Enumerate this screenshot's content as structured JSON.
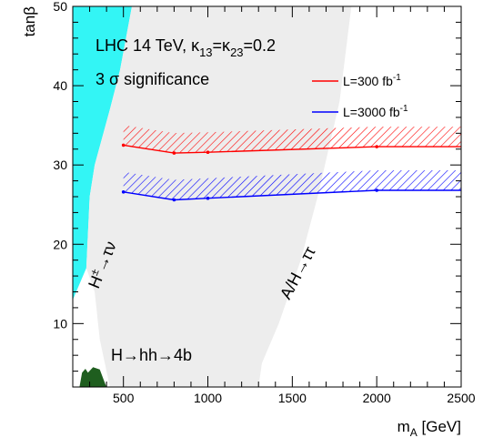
{
  "chart_data": {
    "type": "line",
    "title": "LHC 14 TeV, κ13=κ23=0.2",
    "subtitle": "3 σ significance",
    "xlabel": "m_A [GeV]",
    "ylabel": "tanβ",
    "xlim": [
      200,
      2500
    ],
    "ylim": [
      2,
      50
    ],
    "x_ticks": [
      500,
      1000,
      1500,
      2000,
      2500
    ],
    "y_ticks": [
      10,
      20,
      30,
      40,
      50
    ],
    "grid": false,
    "legend_position": "top-right",
    "series": [
      {
        "name": "L=300 fb",
        "name_superscript": "-1",
        "color": "#ff0000",
        "hatch_side": "above",
        "x": [
          500,
          800,
          1000,
          2000,
          2500
        ],
        "y": [
          32.5,
          31.5,
          31.6,
          32.3,
          32.3
        ]
      },
      {
        "name": "L=3000 fb",
        "name_superscript": "-1",
        "color": "#0000ff",
        "hatch_side": "above",
        "x": [
          500,
          800,
          1000,
          2000,
          2500
        ],
        "y": [
          26.6,
          25.6,
          25.8,
          26.8,
          26.8
        ]
      }
    ],
    "regions": [
      {
        "label": "H±→τν",
        "color": "#33f5f5",
        "boundary": [
          [
            200,
            50
          ],
          [
            550,
            50
          ],
          [
            480,
            42
          ],
          [
            420,
            37
          ],
          [
            330,
            30
          ],
          [
            300,
            26
          ],
          [
            280,
            17
          ],
          [
            200,
            13
          ]
        ]
      },
      {
        "label": "A/H→ττ",
        "color": "#ededed",
        "boundary": [
          [
            550,
            50
          ],
          [
            1850,
            50
          ],
          [
            1780,
            38
          ],
          [
            1650,
            26
          ],
          [
            1550,
            18
          ],
          [
            1420,
            10
          ],
          [
            1320,
            5
          ],
          [
            1300,
            2
          ],
          [
            420,
            2
          ],
          [
            360,
            8
          ],
          [
            330,
            14
          ],
          [
            280,
            17
          ],
          [
            300,
            26
          ],
          [
            330,
            30
          ],
          [
            420,
            37
          ],
          [
            480,
            42
          ]
        ]
      },
      {
        "label": "H→hh→4b",
        "color": "#1f5e1f",
        "boundary": [
          [
            240,
            2
          ],
          [
            255,
            3.8
          ],
          [
            275,
            4.3
          ],
          [
            290,
            3.8
          ],
          [
            320,
            4.5
          ],
          [
            360,
            4.2
          ],
          [
            390,
            2.5
          ],
          [
            400,
            2
          ]
        ]
      }
    ],
    "annotations": {
      "charged": {
        "main": "H",
        "sup": "±",
        "rest": "→τν"
      },
      "neutral": "A/H→ττ",
      "hh": "H→hh→4b",
      "title_parts": {
        "prefix": "LHC 14 TeV, κ",
        "sub1": "13",
        "mid": "=κ",
        "sub2": "23",
        "suffix": "=0.2"
      },
      "xlabel_parts": {
        "main": "m",
        "sub": "A",
        "rest": " [GeV]"
      }
    }
  }
}
